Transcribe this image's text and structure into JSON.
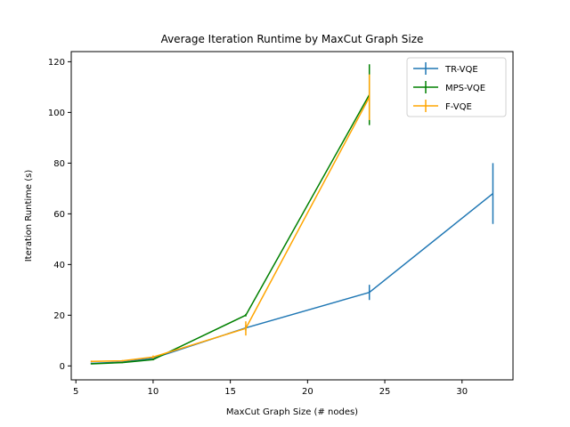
{
  "chart_data": {
    "type": "line",
    "title": "Average Iteration Runtime by MaxCut Graph Size",
    "xlabel": "MaxCut Graph Size (# nodes)",
    "ylabel": "Iteration Runtime (s)",
    "xlim": [
      4.7,
      33.3
    ],
    "ylim": [
      -5.5,
      124
    ],
    "xticks": [
      5,
      10,
      15,
      20,
      25,
      30
    ],
    "yticks": [
      0,
      20,
      40,
      60,
      80,
      100,
      120
    ],
    "grid": false,
    "legend_position": "top-right",
    "series": [
      {
        "name": "TR-VQE",
        "color": "#1f77b4",
        "x": [
          6,
          8,
          10,
          16,
          24,
          32
        ],
        "y": [
          1.0,
          1.5,
          3.0,
          15.0,
          29.0,
          68.0
        ],
        "err": [
          0.3,
          0.3,
          0.4,
          1.0,
          3.0,
          12.0
        ]
      },
      {
        "name": "MPS-VQE",
        "color": "#008000",
        "x": [
          6,
          8,
          10,
          16,
          24
        ],
        "y": [
          0.8,
          1.3,
          2.5,
          20.0,
          107.0
        ],
        "err": [
          0.2,
          0.2,
          0.3,
          0.5,
          12.0
        ]
      },
      {
        "name": "F-VQE",
        "color": "#ffa500",
        "x": [
          6,
          8,
          10,
          16,
          24
        ],
        "y": [
          1.8,
          2.0,
          3.5,
          14.8,
          106.0
        ],
        "err": [
          0.3,
          0.3,
          0.6,
          2.8,
          9.0
        ]
      }
    ]
  }
}
